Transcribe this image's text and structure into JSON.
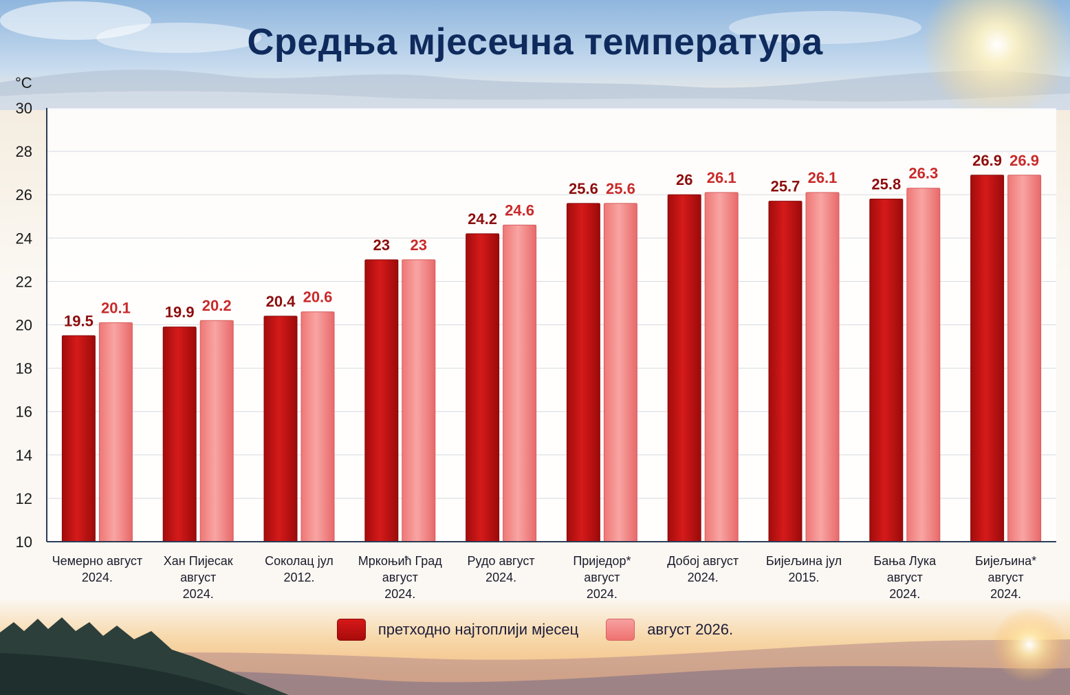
{
  "chart_data": {
    "type": "bar",
    "title": "Средња мјесечна температура",
    "ylabel": "°C",
    "ylim": [
      10,
      30
    ],
    "yticks": [
      10,
      12,
      14,
      16,
      18,
      20,
      22,
      24,
      26,
      28,
      30
    ],
    "grid": true,
    "legend_position": "bottom",
    "categories": [
      [
        "Чемерно август",
        "2024."
      ],
      [
        "Хан Пијесак",
        "август",
        "2024."
      ],
      [
        "Соколац јул",
        "2012."
      ],
      [
        "Мркоњић Град",
        "август",
        "2024."
      ],
      [
        "Рудо август",
        "2024."
      ],
      [
        "Приједор*",
        "август",
        "2024."
      ],
      [
        "Добој август",
        "2024."
      ],
      [
        "Бијељина јул",
        "2015."
      ],
      [
        "Бања Лука",
        "август",
        "2024."
      ],
      [
        "Бијељина*",
        "август",
        "2024."
      ]
    ],
    "series": [
      {
        "name": "претходно најтоплији мјесец",
        "color": "#c41212",
        "label_color": "#8c0d0d",
        "values": [
          19.5,
          19.9,
          20.4,
          23,
          24.2,
          25.6,
          26,
          25.7,
          25.8,
          26.9
        ],
        "labels": [
          "19.5",
          "19.9",
          "20.4",
          "23",
          "24.2",
          "25.6",
          "26",
          "25.7",
          "25.8",
          "26.9"
        ]
      },
      {
        "name": "август 2026.",
        "color": "#f28a88",
        "label_color": "#c92a2a",
        "values": [
          20.1,
          20.2,
          20.6,
          23,
          24.6,
          25.6,
          26.1,
          26.1,
          26.3,
          26.9
        ],
        "labels": [
          "20.1",
          "20.2",
          "20.6",
          "23",
          "24.6",
          "25.6",
          "26.1",
          "26.1",
          "26.3",
          "26.9"
        ]
      }
    ]
  }
}
